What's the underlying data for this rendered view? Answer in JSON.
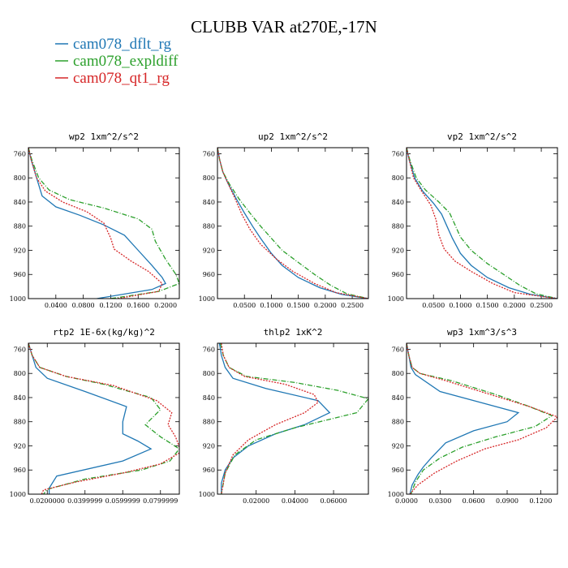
{
  "figure": {
    "title": "CLUBB VAR at270E,-17N",
    "legend": [
      {
        "label": "cam078_dflt_rg",
        "color": "#1f77b4",
        "dash": "solid"
      },
      {
        "label": "cam078_expldiff",
        "color": "#2ca02c",
        "dash": "dashdot"
      },
      {
        "label": "cam078_qt1_rg",
        "color": "#d62728",
        "dash": "dotted"
      }
    ]
  },
  "chart_data": [
    {
      "type": "line",
      "title": "wp2  1xm^2/s^2",
      "xlim": [
        0.0,
        0.22
      ],
      "ylim": [
        1000,
        750
      ],
      "xticks": [
        0.04,
        0.08,
        0.12,
        0.16,
        0.2
      ],
      "xtick_labels": [
        "0.0400",
        "0.0800",
        "0.1200",
        "0.1600",
        "0.2000"
      ],
      "yticks": [
        760,
        800,
        840,
        880,
        920,
        960,
        1000
      ],
      "series": [
        {
          "name": "cam078_dflt_rg",
          "x": [
            0.0,
            0.004,
            0.012,
            0.02,
            0.04,
            0.075,
            0.11,
            0.14,
            0.16,
            0.18,
            0.195,
            0.2,
            0.18,
            0.1
          ],
          "y": [
            750,
            770,
            800,
            830,
            848,
            862,
            878,
            895,
            920,
            945,
            965,
            975,
            985,
            1000
          ]
        },
        {
          "name": "cam078_expldiff",
          "x": [
            0.0,
            0.005,
            0.015,
            0.03,
            0.06,
            0.11,
            0.16,
            0.18,
            0.185,
            0.2,
            0.215,
            0.22,
            0.19,
            0.12
          ],
          "y": [
            750,
            770,
            800,
            820,
            836,
            850,
            868,
            885,
            905,
            935,
            960,
            975,
            988,
            1000
          ]
        },
        {
          "name": "cam078_qt1_rg",
          "x": [
            0.0,
            0.004,
            0.012,
            0.025,
            0.05,
            0.085,
            0.11,
            0.12,
            0.125,
            0.15,
            0.175,
            0.195,
            0.19,
            0.13
          ],
          "y": [
            750,
            770,
            800,
            822,
            840,
            856,
            875,
            900,
            918,
            938,
            955,
            975,
            988,
            1000
          ]
        }
      ]
    },
    {
      "type": "line",
      "title": "up2  1xm^2/s^2",
      "xlim": [
        0.0,
        0.28
      ],
      "ylim": [
        1000,
        750
      ],
      "xticks": [
        0.05,
        0.1,
        0.15,
        0.2,
        0.25
      ],
      "xtick_labels": [
        "0.0500",
        "0.1000",
        "0.1500",
        "0.2000",
        "0.2500"
      ],
      "yticks": [
        760,
        800,
        840,
        880,
        920,
        960,
        1000
      ],
      "series": [
        {
          "name": "cam078_dflt_rg",
          "x": [
            0.0,
            0.004,
            0.01,
            0.02,
            0.035,
            0.05,
            0.065,
            0.08,
            0.1,
            0.12,
            0.15,
            0.19,
            0.23,
            0.28
          ],
          "y": [
            750,
            770,
            790,
            810,
            835,
            858,
            880,
            900,
            925,
            945,
            965,
            982,
            993,
            1000
          ]
        },
        {
          "name": "cam078_expldiff",
          "x": [
            0.0,
            0.004,
            0.01,
            0.022,
            0.04,
            0.06,
            0.08,
            0.1,
            0.12,
            0.15,
            0.18,
            0.21,
            0.24,
            0.28
          ],
          "y": [
            750,
            770,
            790,
            810,
            835,
            858,
            880,
            900,
            920,
            940,
            960,
            978,
            992,
            1000
          ]
        },
        {
          "name": "cam078_qt1_rg",
          "x": [
            0.0,
            0.004,
            0.01,
            0.02,
            0.033,
            0.045,
            0.06,
            0.08,
            0.11,
            0.14,
            0.18,
            0.22,
            0.28
          ],
          "y": [
            750,
            770,
            790,
            810,
            835,
            860,
            885,
            910,
            935,
            955,
            975,
            990,
            1000
          ]
        }
      ]
    },
    {
      "type": "line",
      "title": "vp2  1xm^2/s^2",
      "xlim": [
        0.0,
        0.28
      ],
      "ylim": [
        1000,
        750
      ],
      "xticks": [
        0.05,
        0.1,
        0.15,
        0.2,
        0.25
      ],
      "xtick_labels": [
        "0.0500",
        "0.1000",
        "0.1500",
        "0.2000",
        "0.2500"
      ],
      "yticks": [
        760,
        800,
        840,
        880,
        920,
        960,
        1000
      ],
      "series": [
        {
          "name": "cam078_dflt_rg",
          "x": [
            0.0,
            0.005,
            0.015,
            0.03,
            0.05,
            0.065,
            0.075,
            0.085,
            0.1,
            0.12,
            0.15,
            0.19,
            0.23,
            0.28
          ],
          "y": [
            750,
            770,
            800,
            822,
            842,
            860,
            880,
            900,
            925,
            945,
            965,
            982,
            993,
            1000
          ]
        },
        {
          "name": "cam078_expldiff",
          "x": [
            0.0,
            0.006,
            0.018,
            0.035,
            0.06,
            0.08,
            0.09,
            0.1,
            0.12,
            0.15,
            0.18,
            0.21,
            0.24,
            0.28
          ],
          "y": [
            750,
            770,
            800,
            820,
            840,
            858,
            878,
            898,
            920,
            942,
            960,
            978,
            992,
            1000
          ]
        },
        {
          "name": "cam078_qt1_rg",
          "x": [
            0.0,
            0.005,
            0.013,
            0.028,
            0.045,
            0.055,
            0.06,
            0.07,
            0.09,
            0.12,
            0.16,
            0.2,
            0.28
          ],
          "y": [
            750,
            770,
            800,
            822,
            845,
            870,
            895,
            918,
            938,
            955,
            975,
            990,
            1000
          ]
        }
      ]
    },
    {
      "type": "line",
      "title": "rtp2  1E-6x(kg/kg)^2",
      "xlim": [
        0.01,
        0.09
      ],
      "ylim": [
        1000,
        750
      ],
      "xticks": [
        0.02,
        0.04,
        0.06,
        0.08
      ],
      "xtick_labels": [
        "0.0200000",
        "0.0399999",
        "0.0599999",
        "0.0799999"
      ],
      "yticks": [
        760,
        800,
        840,
        880,
        920,
        960,
        1000
      ],
      "series": [
        {
          "name": "cam078_dflt_rg",
          "x": [
            0.01,
            0.012,
            0.014,
            0.02,
            0.04,
            0.062,
            0.06,
            0.06,
            0.068,
            0.075,
            0.06,
            0.025,
            0.021,
            0.021
          ],
          "y": [
            750,
            770,
            790,
            808,
            830,
            855,
            880,
            900,
            912,
            925,
            945,
            970,
            990,
            1000
          ]
        },
        {
          "name": "cam078_expldiff",
          "x": [
            0.01,
            0.012,
            0.016,
            0.03,
            0.05,
            0.075,
            0.08,
            0.072,
            0.08,
            0.09,
            0.085,
            0.07,
            0.04,
            0.02,
            0.018
          ],
          "y": [
            750,
            770,
            790,
            805,
            818,
            840,
            860,
            885,
            905,
            925,
            945,
            960,
            975,
            992,
            1000
          ]
        },
        {
          "name": "cam078_qt1_rg",
          "x": [
            0.01,
            0.012,
            0.016,
            0.03,
            0.055,
            0.078,
            0.086,
            0.084,
            0.088,
            0.091,
            0.08,
            0.06,
            0.035,
            0.018,
            0.017
          ],
          "y": [
            750,
            770,
            790,
            805,
            820,
            845,
            865,
            885,
            905,
            930,
            950,
            965,
            980,
            993,
            1000
          ]
        }
      ]
    },
    {
      "type": "line",
      "title": "thlp2  1xK^2",
      "xlim": [
        0.0,
        0.078
      ],
      "ylim": [
        1000,
        750
      ],
      "xticks": [
        0.02,
        0.04,
        0.06
      ],
      "xtick_labels": [
        "0.02000",
        "0.04000",
        "0.06000"
      ],
      "yticks": [
        760,
        800,
        840,
        880,
        920,
        960,
        1000
      ],
      "series": [
        {
          "name": "cam078_dflt_rg",
          "x": [
            0.001,
            0.002,
            0.004,
            0.008,
            0.025,
            0.052,
            0.058,
            0.045,
            0.03,
            0.016,
            0.008,
            0.004,
            0.002,
            0.002
          ],
          "y": [
            750,
            770,
            790,
            808,
            825,
            845,
            865,
            885,
            900,
            920,
            940,
            960,
            982,
            1000
          ]
        },
        {
          "name": "cam078_expldiff",
          "x": [
            0.0015,
            0.003,
            0.006,
            0.015,
            0.04,
            0.062,
            0.078,
            0.072,
            0.04,
            0.02,
            0.009,
            0.004,
            0.002
          ],
          "y": [
            750,
            770,
            790,
            805,
            815,
            828,
            842,
            865,
            890,
            910,
            935,
            965,
            1000
          ]
        },
        {
          "name": "cam078_qt1_rg",
          "x": [
            0.002,
            0.003,
            0.006,
            0.014,
            0.035,
            0.05,
            0.052,
            0.045,
            0.03,
            0.016,
            0.008,
            0.004,
            0.002
          ],
          "y": [
            750,
            770,
            790,
            805,
            818,
            835,
            848,
            865,
            885,
            910,
            935,
            965,
            1000
          ]
        }
      ]
    },
    {
      "type": "line",
      "title": "wp3  1xm^3/s^3",
      "xlim": [
        0.0,
        0.135
      ],
      "ylim": [
        1000,
        750
      ],
      "xticks": [
        0.0,
        0.03,
        0.06,
        0.09,
        0.12
      ],
      "xtick_labels": [
        "0.0000",
        "0.0300",
        "0.0600",
        "0.0900",
        "0.1200"
      ],
      "yticks": [
        760,
        800,
        840,
        880,
        920,
        960,
        1000
      ],
      "series": [
        {
          "name": "cam078_dflt_rg",
          "x": [
            0.0,
            0.002,
            0.004,
            0.008,
            0.03,
            0.07,
            0.1,
            0.09,
            0.06,
            0.035,
            0.022,
            0.015,
            0.01,
            0.005,
            0.003
          ],
          "y": [
            750,
            770,
            790,
            802,
            830,
            850,
            865,
            880,
            895,
            915,
            940,
            955,
            968,
            985,
            1000
          ]
        },
        {
          "name": "cam078_expldiff",
          "x": [
            0.0,
            0.002,
            0.005,
            0.012,
            0.04,
            0.08,
            0.11,
            0.13,
            0.115,
            0.08,
            0.05,
            0.03,
            0.015,
            0.008,
            0.004
          ],
          "y": [
            750,
            770,
            790,
            800,
            812,
            835,
            855,
            870,
            888,
            905,
            922,
            940,
            960,
            980,
            1000
          ]
        },
        {
          "name": "cam078_qt1_rg",
          "x": [
            0.0,
            0.002,
            0.005,
            0.012,
            0.035,
            0.075,
            0.11,
            0.135,
            0.125,
            0.1,
            0.07,
            0.045,
            0.025,
            0.01,
            0.003
          ],
          "y": [
            750,
            770,
            790,
            800,
            812,
            835,
            855,
            872,
            890,
            910,
            925,
            945,
            965,
            985,
            1000
          ]
        }
      ]
    }
  ]
}
